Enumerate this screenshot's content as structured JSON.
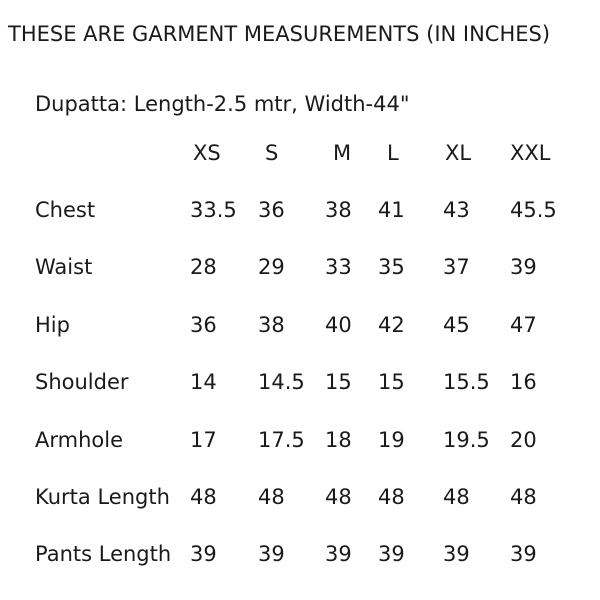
{
  "page": {
    "background_color": "#ffffff",
    "text_color": "#1a1a1a"
  },
  "title": "THESE ARE GARMENT MEASUREMENTS (IN INCHES)",
  "dupatta_note": "Dupatta: Length-2.5 mtr, Width-44\"",
  "size_chart": {
    "columns": [
      "XS",
      "S",
      "M",
      "L",
      "XL",
      "XXL"
    ],
    "rows": [
      {
        "label": "Chest",
        "values": [
          "33.5",
          "36",
          "38",
          "41",
          "43",
          "45.5"
        ]
      },
      {
        "label": "Waist",
        "values": [
          "28",
          "29",
          "33",
          "35",
          "37",
          "39"
        ]
      },
      {
        "label": "Hip",
        "values": [
          "36",
          "38",
          "40",
          "42",
          "45",
          "47"
        ]
      },
      {
        "label": "Shoulder",
        "values": [
          "14",
          "14.5",
          "15",
          "15",
          "15.5",
          "16"
        ]
      },
      {
        "label": "Armhole",
        "values": [
          "17",
          "17.5",
          "18",
          "19",
          "19.5",
          "20"
        ]
      },
      {
        "label": "Kurta Length",
        "values": [
          "48",
          "48",
          "48",
          "48",
          "48",
          "48"
        ]
      },
      {
        "label": "Pants Length",
        "values": [
          "39",
          "39",
          "39",
          "39",
          "39",
          "39"
        ]
      }
    ]
  }
}
